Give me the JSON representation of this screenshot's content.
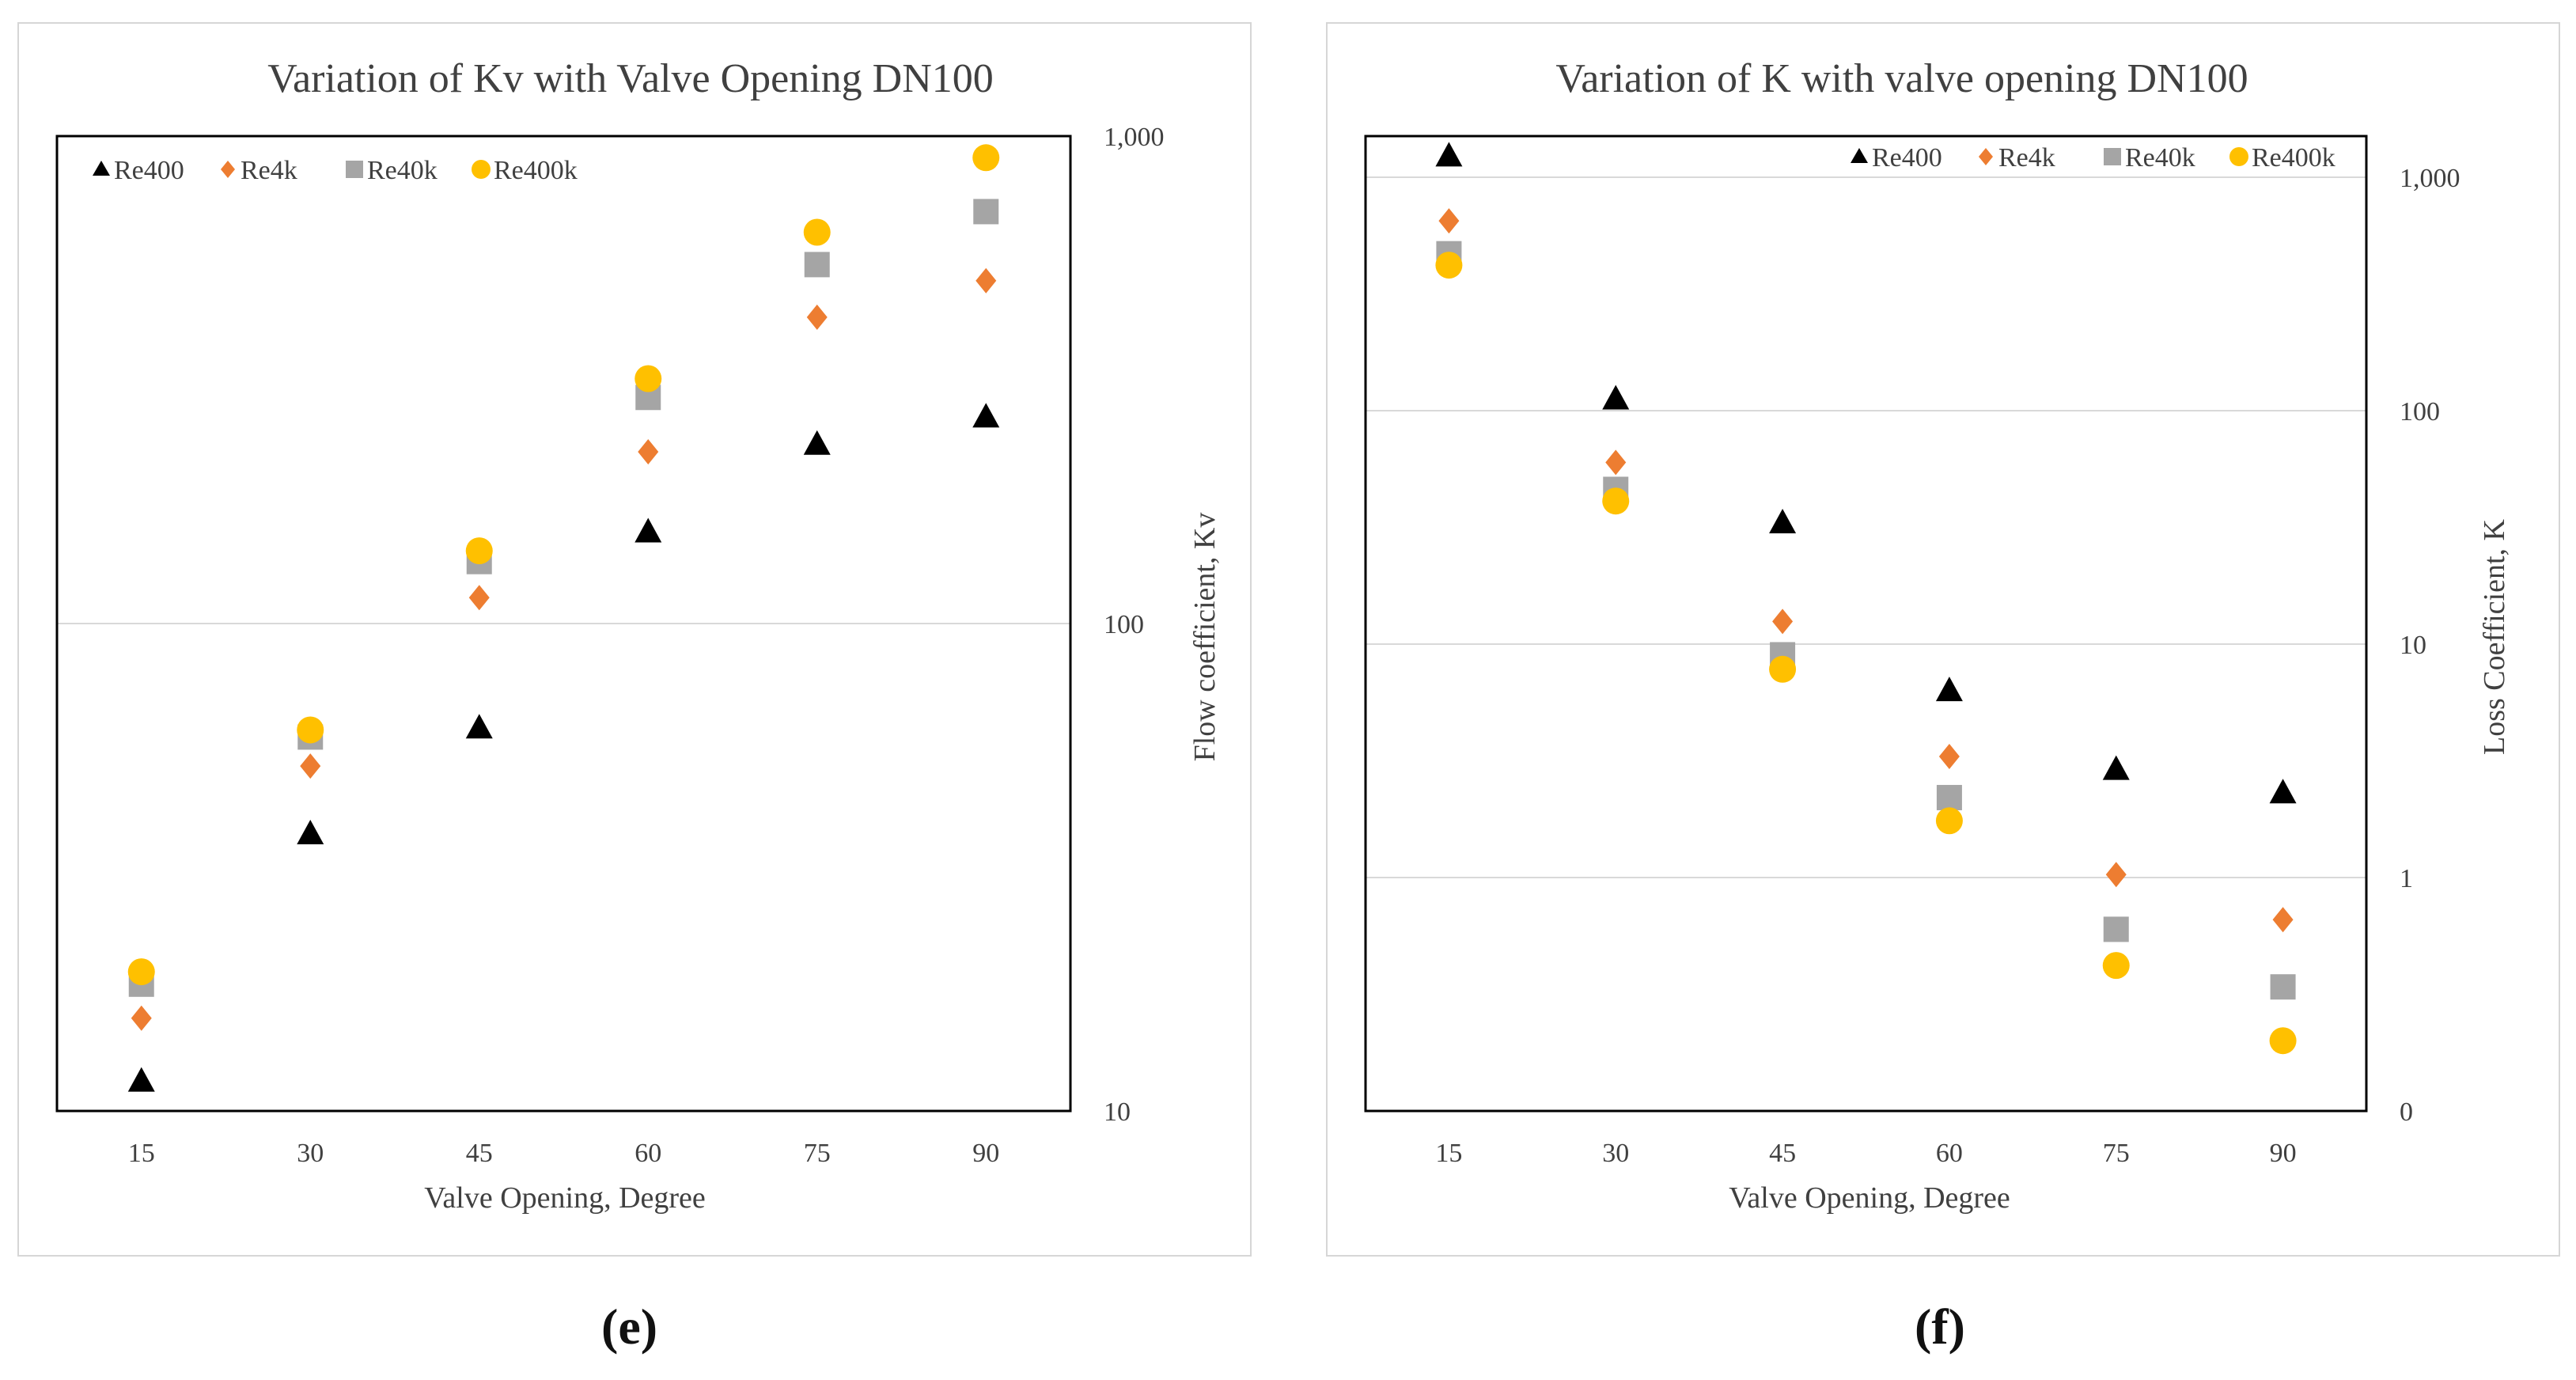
{
  "chart_data": [
    {
      "type": "scatter",
      "title": "Variation of Kv with Valve Opening DN100",
      "xlabel": "Valve Opening, Degree",
      "ylabel": "Flow coefficient, Kv",
      "yscale": "log",
      "ylim": [
        10,
        1000
      ],
      "yticks": [
        10,
        100,
        1000
      ],
      "ytick_labels": [
        "10",
        "100",
        "1,000"
      ],
      "y_axis_side": "right",
      "categories": [
        15,
        30,
        45,
        60,
        75,
        90
      ],
      "series": [
        {
          "name": "Re400",
          "marker": "triangle",
          "color": "#000000",
          "values": [
            11.5,
            37,
            61,
            154,
            233,
            265
          ]
        },
        {
          "name": "Re4k",
          "marker": "diamond",
          "color": "#ED7D31",
          "values": [
            15.5,
            51,
            113,
            225,
            425,
            505
          ]
        },
        {
          "name": "Re40k",
          "marker": "square",
          "color": "#A5A5A5",
          "values": [
            18.2,
            58.5,
            134,
            291,
            545,
            700
          ]
        },
        {
          "name": "Re400k",
          "marker": "circle",
          "color": "#FFC000",
          "values": [
            19.3,
            60.5,
            141,
            318,
            635,
            903
          ]
        }
      ],
      "legend": "top-left",
      "grid": true
    },
    {
      "type": "scatter",
      "title": "Variation of K with valve opening DN100",
      "xlabel": "Valve Opening, Degree",
      "ylabel": "Loss Coefficient, K",
      "yscale": "log",
      "ylim": [
        0.1,
        1500
      ],
      "yticks": [
        0.1,
        1,
        10,
        100,
        1000
      ],
      "ytick_labels": [
        "0",
        "1",
        "10",
        "100",
        "1,000"
      ],
      "y_axis_side": "right",
      "categories": [
        15,
        30,
        45,
        60,
        75,
        90
      ],
      "series": [
        {
          "name": "Re400",
          "marker": "triangle",
          "color": "#000000",
          "values": [
            1230,
            112,
            33,
            6.3,
            2.9,
            2.3
          ]
        },
        {
          "name": "Re4k",
          "marker": "diamond",
          "color": "#ED7D31",
          "values": [
            650,
            60,
            12.5,
            3.3,
            1.03,
            0.66
          ]
        },
        {
          "name": "Re40k",
          "marker": "square",
          "color": "#A5A5A5",
          "values": [
            470,
            46,
            9,
            2.2,
            0.6,
            0.34
          ]
        },
        {
          "name": "Re400k",
          "marker": "circle",
          "color": "#FFC000",
          "values": [
            420,
            41,
            7.8,
            1.75,
            0.42,
            0.2
          ]
        }
      ],
      "legend": "top-right",
      "grid": true
    }
  ],
  "captions": {
    "e": "(e)",
    "f": "(f)"
  }
}
